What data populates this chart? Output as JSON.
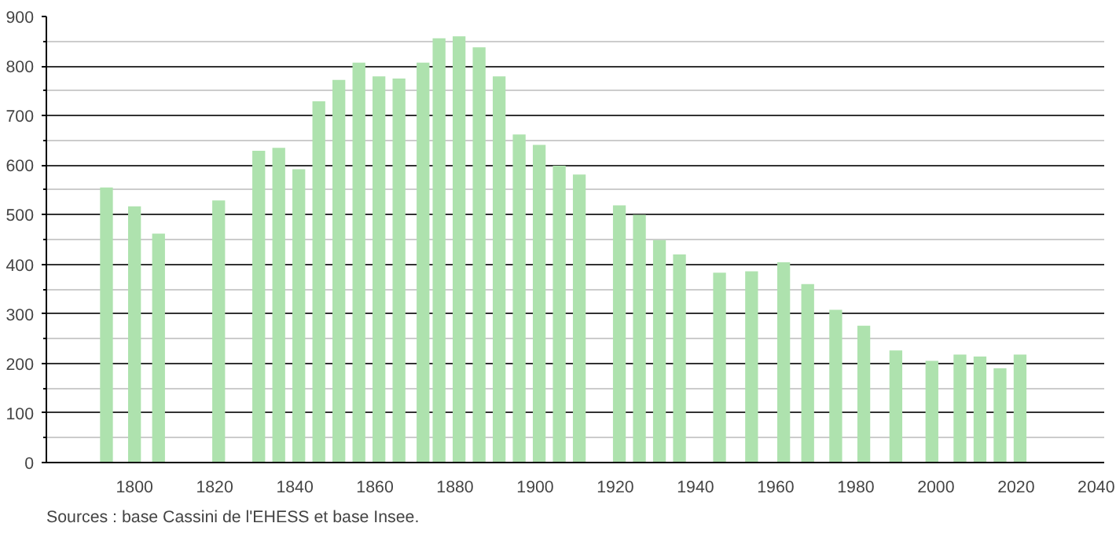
{
  "chart_data": {
    "type": "bar",
    "x": [
      1793,
      1800,
      1806,
      1821,
      1831,
      1836,
      1841,
      1846,
      1851,
      1856,
      1861,
      1866,
      1872,
      1876,
      1881,
      1886,
      1891,
      1896,
      1901,
      1906,
      1911,
      1921,
      1926,
      1931,
      1936,
      1946,
      1954,
      1962,
      1968,
      1975,
      1982,
      1990,
      1999,
      2006,
      2011,
      2016,
      2021
    ],
    "values": [
      555,
      517,
      462,
      529,
      629,
      635,
      592,
      729,
      772,
      807,
      779,
      775,
      807,
      856,
      860,
      838,
      779,
      662,
      641,
      599,
      581,
      519,
      500,
      449,
      420,
      383,
      386,
      404,
      360,
      308,
      276,
      226,
      205,
      218,
      214,
      190,
      218
    ],
    "color": "#aee2ae",
    "xlim": [
      1778,
      2042
    ],
    "xticks": [
      1800,
      1820,
      1840,
      1860,
      1880,
      1900,
      1920,
      1940,
      1960,
      1980,
      2000,
      2020,
      2040
    ],
    "ylim": [
      0,
      900
    ],
    "yticks": [
      0,
      100,
      200,
      300,
      400,
      500,
      600,
      700,
      800,
      900
    ],
    "grid": "y",
    "annotations": [
      "Sources : base Cassini de l'EHESS et base Insee."
    ]
  }
}
